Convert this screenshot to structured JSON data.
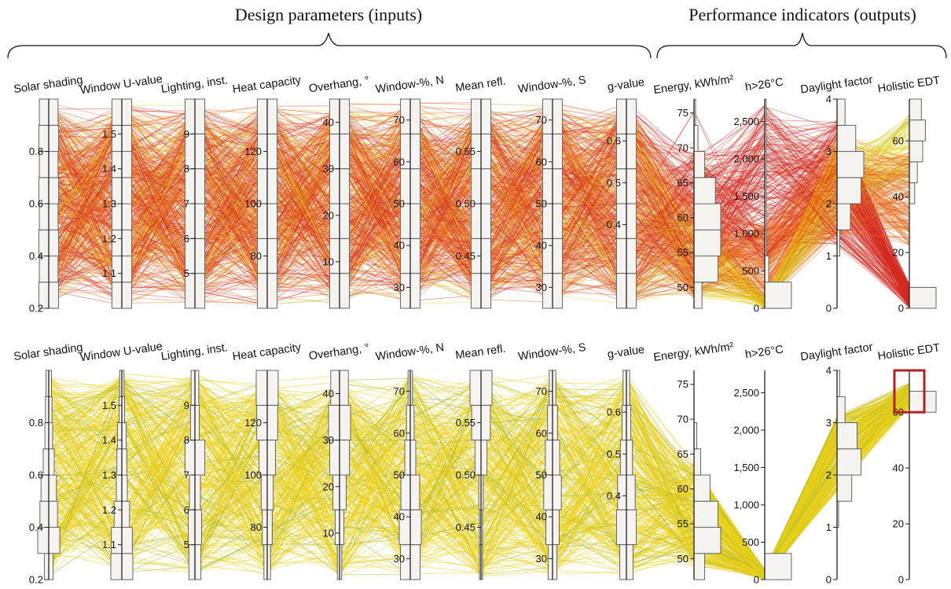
{
  "headers": {
    "inputs": "Design parameters (inputs)",
    "outputs": "Performance indicators (outputs)"
  },
  "colors": {
    "line_red": "#d42a22",
    "line_orange": "#ea6a1a",
    "line_yellow": "#eed21a",
    "line_olive": "#9bb533",
    "highlight": "#b22222",
    "histogram": "#f5f3ef"
  },
  "chart_data": [
    {
      "type": "parallel_coordinates",
      "panel": "all-designs",
      "axes": [
        {
          "label": "Solar shading",
          "range": [
            0.2,
            1.0
          ],
          "ticks": [
            0.2,
            0.4,
            0.6,
            0.8
          ],
          "tick_labels": [
            "0.2",
            "0.4",
            "0.6",
            "0.8"
          ],
          "ticks_side": "left",
          "hist": [
            0.9,
            0.85,
            0.9,
            0.85,
            0.9,
            0.85,
            0.9,
            0.85
          ]
        },
        {
          "label": "Window U-value",
          "range": [
            1.0,
            1.6
          ],
          "ticks": [
            1.1,
            1.2,
            1.3,
            1.4,
            1.5
          ],
          "tick_labels": [
            "1.1",
            "1.2",
            "1.3",
            "1.4",
            "1.5"
          ],
          "hist": [
            0.9,
            0.9,
            0.9,
            0.9,
            0.9,
            0.9,
            0.9,
            0.9
          ]
        },
        {
          "label": "Lighting, inst.",
          "range": [
            4.0,
            10.0
          ],
          "ticks": [
            5,
            6,
            7,
            8,
            9
          ],
          "tick_labels": [
            "5",
            "6",
            "7",
            "8",
            "9"
          ],
          "hist": [
            0.9,
            0.9,
            0.9,
            0.9,
            0.9,
            0.9
          ]
        },
        {
          "label": "Heat capacity",
          "range": [
            60,
            140
          ],
          "ticks": [
            80,
            100,
            120
          ],
          "tick_labels": [
            "80",
            "100",
            "120"
          ],
          "hist": [
            0.9,
            0.9,
            0.9,
            0.9,
            0.9,
            0.9
          ]
        },
        {
          "label": "Overhang, °",
          "range": [
            0,
            45
          ],
          "ticks": [
            10,
            20,
            30,
            40
          ],
          "tick_labels": [
            "10",
            "20",
            "30",
            "40"
          ],
          "hist": [
            0.9,
            0.9,
            0.9,
            0.9,
            0.9,
            0.9
          ]
        },
        {
          "label": "Window-%, N",
          "range": [
            25,
            75
          ],
          "ticks": [
            30,
            40,
            50,
            60,
            70
          ],
          "tick_labels": [
            "30",
            "40",
            "50",
            "60",
            "70"
          ],
          "hist": [
            0.9,
            0.9,
            0.9,
            0.9,
            0.9,
            0.9
          ]
        },
        {
          "label": "Mean refl.",
          "range": [
            0.4,
            0.6
          ],
          "ticks": [
            0.45,
            0.5,
            0.55
          ],
          "tick_labels": [
            "0.45",
            "0.50",
            "0.55"
          ],
          "hist": [
            0.9,
            0.9,
            0.9,
            0.9,
            0.9,
            0.9
          ]
        },
        {
          "label": "Window-%, S",
          "range": [
            25,
            75
          ],
          "ticks": [
            30,
            40,
            50,
            60,
            70
          ],
          "tick_labels": [
            "30",
            "40",
            "50",
            "60",
            "70"
          ],
          "hist": [
            0.9,
            0.9,
            0.9,
            0.9,
            0.9,
            0.9
          ]
        },
        {
          "label": "g-value",
          "range": [
            0.2,
            0.7
          ],
          "ticks": [
            0.4,
            0.5,
            0.6
          ],
          "tick_labels": [
            "0.4",
            "0.5",
            "0.6"
          ],
          "hist": [
            0.9,
            0.9,
            0.9,
            0.9,
            0.9,
            0.9
          ]
        },
        {
          "label": "Energy, kWh/m²",
          "range": [
            47,
            77
          ],
          "ticks": [
            50,
            55,
            60,
            65,
            70,
            75
          ],
          "tick_labels": [
            "50",
            "55",
            "60",
            "65",
            "70",
            "75"
          ],
          "hist": [
            0.3,
            0.9,
            1.0,
            1.0,
            0.8,
            0.4,
            0.15,
            0.05
          ]
        },
        {
          "label": "h>26°C",
          "range": [
            0,
            2800
          ],
          "ticks": [
            0,
            500,
            1000,
            1500,
            2000,
            2500
          ],
          "tick_labels": [
            "0",
            "500",
            "1,000",
            "1,500",
            "2,000",
            "2,500"
          ],
          "hist": [
            1.0,
            0.15,
            0.02,
            0.01,
            0.01,
            0.01,
            0.005,
            0.005
          ]
        },
        {
          "label": "Daylight factor",
          "range": [
            0,
            4
          ],
          "ticks": [
            0,
            1,
            2,
            3,
            4
          ],
          "tick_labels": [
            "0",
            "1",
            "2",
            "3",
            "4"
          ],
          "hist": [
            0.0,
            0.0,
            0.1,
            0.5,
            0.9,
            1.0,
            0.7,
            0.3
          ]
        },
        {
          "label": "Holistic EDT",
          "range": [
            0,
            75
          ],
          "ticks": [
            0,
            20,
            40,
            60
          ],
          "tick_labels": [
            "0",
            "20",
            "40",
            "60"
          ],
          "hist": [
            1.0,
            0.0,
            0.0,
            0.0,
            0.0,
            0.2,
            0.3,
            0.5,
            0.6,
            0.45
          ]
        }
      ]
    },
    {
      "type": "parallel_coordinates",
      "panel": "filtered-designs",
      "axes": [
        {
          "label": "Solar shading",
          "range": [
            0.2,
            1.0
          ],
          "ticks": [
            0.2,
            0.4,
            0.6,
            0.8
          ],
          "tick_labels": [
            "0.2",
            "0.4",
            "0.6",
            "0.8"
          ],
          "ticks_side": "left",
          "hist": [
            0.4,
            1.0,
            0.8,
            0.7,
            0.5,
            0.35,
            0.3,
            0.25
          ]
        },
        {
          "label": "Window U-value",
          "range": [
            1.0,
            1.6
          ],
          "ticks": [
            1.1,
            1.2,
            1.3,
            1.4,
            1.5
          ],
          "tick_labels": [
            "1.1",
            "1.2",
            "1.3",
            "1.4",
            "1.5"
          ],
          "hist": [
            1.0,
            0.95,
            0.7,
            0.5,
            0.45,
            0.4,
            0.25,
            0.2
          ]
        },
        {
          "label": "Lighting, inst.",
          "range": [
            4.0,
            10.0
          ],
          "ticks": [
            5,
            6,
            7,
            8,
            9
          ],
          "tick_labels": [
            "5",
            "6",
            "7",
            "8",
            "9"
          ],
          "hist": [
            0.55,
            0.6,
            0.5,
            0.9,
            0.4,
            0.35
          ]
        },
        {
          "label": "Heat capacity",
          "range": [
            60,
            140
          ],
          "ticks": [
            80,
            100,
            120
          ],
          "tick_labels": [
            "80",
            "100",
            "120"
          ],
          "hist": [
            0.3,
            0.45,
            0.55,
            0.75,
            0.95,
            1.0
          ]
        },
        {
          "label": "Overhang, °",
          "range": [
            0,
            45
          ],
          "ticks": [
            10,
            20,
            30,
            40
          ],
          "tick_labels": [
            "10",
            "20",
            "30",
            "40"
          ],
          "hist": [
            0.2,
            0.4,
            0.6,
            0.9,
            1.0,
            0.8
          ]
        },
        {
          "label": "Window-%, N",
          "range": [
            25,
            75
          ],
          "ticks": [
            30,
            40,
            50,
            60,
            70
          ],
          "tick_labels": [
            "30",
            "40",
            "50",
            "60",
            "70"
          ],
          "hist": [
            0.9,
            1.0,
            0.85,
            0.5,
            0.35,
            0.2
          ]
        },
        {
          "label": "Mean refl.",
          "range": [
            0.4,
            0.6
          ],
          "ticks": [
            0.45,
            0.5,
            0.55
          ],
          "tick_labels": [
            "0.45",
            "0.50",
            "0.55"
          ],
          "hist": [
            0.05,
            0.1,
            0.2,
            0.55,
            0.85,
            1.0
          ]
        },
        {
          "label": "Window-%, S",
          "range": [
            25,
            75
          ],
          "ticks": [
            30,
            40,
            50,
            60,
            70
          ],
          "tick_labels": [
            "30",
            "40",
            "50",
            "60",
            "70"
          ],
          "hist": [
            0.4,
            0.6,
            0.8,
            0.65,
            0.45,
            0.3
          ]
        },
        {
          "label": "g-value",
          "range": [
            0.2,
            0.7
          ],
          "ticks": [
            0.4,
            0.5,
            0.6
          ],
          "tick_labels": [
            "0.4",
            "0.5",
            "0.6"
          ],
          "hist": [
            0.6,
            0.9,
            0.8,
            0.55,
            0.4,
            0.3
          ]
        },
        {
          "label": "Energy, kWh/m²",
          "range": [
            47,
            77
          ],
          "ticks": [
            50,
            55,
            60,
            65,
            70,
            75
          ],
          "tick_labels": [
            "50",
            "55",
            "60",
            "65",
            "70",
            "75"
          ],
          "hist": [
            0.4,
            1.0,
            0.9,
            0.6,
            0.25,
            0.1,
            0.0,
            0.0
          ]
        },
        {
          "label": "h>26°C",
          "range": [
            0,
            2800
          ],
          "ticks": [
            0,
            500,
            1000,
            1500,
            2000,
            2500
          ],
          "tick_labels": [
            "0",
            "500",
            "1,000",
            "1,500",
            "2,000",
            "2,500"
          ],
          "hist": [
            1.0,
            0.0,
            0.0,
            0.0,
            0.0,
            0.0,
            0.0,
            0.0
          ]
        },
        {
          "label": "Daylight factor",
          "range": [
            0,
            4
          ],
          "ticks": [
            0,
            1,
            2,
            3,
            4
          ],
          "tick_labels": [
            "0",
            "1",
            "2",
            "3",
            "4"
          ],
          "hist": [
            0.0,
            0.0,
            0.05,
            0.55,
            0.9,
            0.75,
            0.3,
            0.1
          ]
        },
        {
          "label": "Holistic EDT",
          "range": [
            0,
            75
          ],
          "ticks": [
            0,
            20,
            40,
            60
          ],
          "tick_labels": [
            "0",
            "20",
            "40",
            "60"
          ],
          "hist": [
            0.0,
            0.0,
            0.0,
            0.0,
            0.0,
            0.0,
            0.0,
            0.0,
            1.0,
            0.0
          ],
          "brush": [
            60,
            75
          ]
        }
      ]
    }
  ]
}
